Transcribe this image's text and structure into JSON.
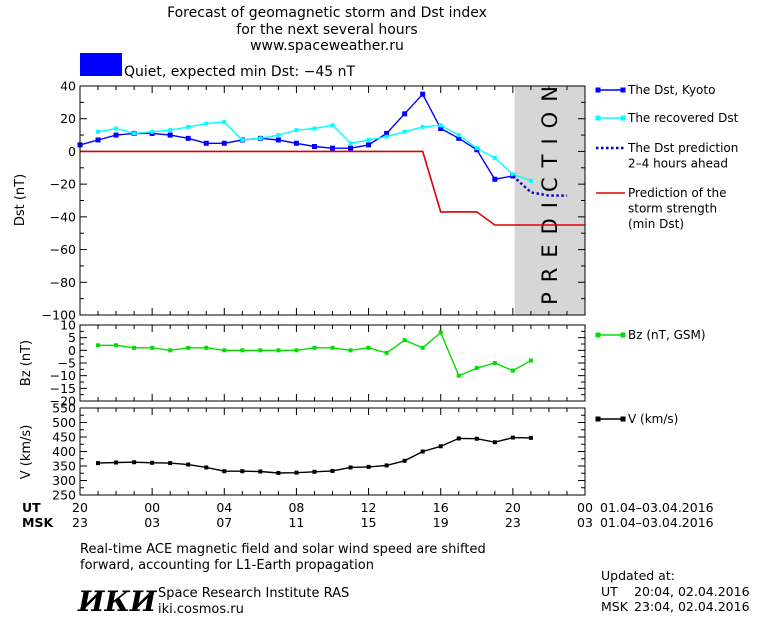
{
  "header": {
    "title_line1": "Forecast of geomagnetic storm and Dst index",
    "title_line2": "for the next several hours",
    "website": "www.spaceweather.ru",
    "status_text": "Quiet, expected min Dst: −45 nT",
    "status_color": "#0000ff"
  },
  "time_axis": {
    "ut_label": "UT",
    "msk_label": "MSK",
    "ut_ticks": [
      "20",
      "00",
      "04",
      "08",
      "12",
      "16",
      "20",
      "00"
    ],
    "msk_ticks": [
      "23",
      "03",
      "07",
      "11",
      "15",
      "19",
      "23",
      "03"
    ],
    "tick_hours": [
      0,
      4,
      8,
      12,
      16,
      20,
      24,
      28
    ],
    "date_range_ut": "01.04–03.04.2016",
    "date_range_msk": "01.04–03.04.2016",
    "xlim": [
      0,
      28
    ]
  },
  "chart_data": [
    {
      "id": "dst",
      "type": "line",
      "ylabel": "Dst (nT)",
      "ylim": [
        -100,
        40
      ],
      "yticks": [
        "40",
        "20",
        "0",
        "−20",
        "−40",
        "−60",
        "−80",
        "−100"
      ],
      "ytick_values": [
        40,
        20,
        0,
        -20,
        -40,
        -60,
        -80,
        -100
      ],
      "prediction_region": {
        "label": "PREDICTION",
        "x_start": 24.1,
        "x_end": 28
      },
      "series": [
        {
          "name": "The Dst, Kyoto",
          "color": "#0000ff",
          "x": [
            0,
            1,
            2,
            3,
            4,
            5,
            6,
            7,
            8,
            9,
            10,
            11,
            12,
            13,
            14,
            15,
            16,
            17,
            18,
            19,
            20,
            21,
            22,
            23,
            24
          ],
          "values": [
            4,
            7,
            10,
            11,
            11,
            10,
            8,
            5,
            5,
            7,
            8,
            7,
            5,
            3,
            2,
            2,
            4,
            11,
            23,
            35,
            14,
            8,
            1,
            -17,
            -15
          ]
        },
        {
          "name": "The recovered Dst",
          "color": "#00ffff",
          "x": [
            1,
            2,
            3,
            4,
            5,
            6,
            7,
            8,
            9,
            10,
            11,
            12,
            13,
            14,
            15,
            16,
            17,
            18,
            19,
            20,
            21,
            22,
            23,
            24,
            25
          ],
          "values": [
            12,
            14,
            11,
            12,
            13,
            15,
            17,
            18,
            7,
            8,
            10,
            13,
            14,
            16,
            5,
            7,
            9,
            12,
            15,
            16,
            10,
            2,
            -4,
            -14,
            -18
          ]
        },
        {
          "name": "The Dst prediction 2–4 hours ahead",
          "legend_lines": [
            "The Dst prediction",
            "2–4 hours ahead"
          ],
          "color": "#0000cc",
          "x": [
            24,
            25,
            26,
            27
          ],
          "values": [
            -15,
            -25,
            -27,
            -27
          ]
        },
        {
          "name": "Prediction of the storm strength (min Dst)",
          "legend_lines": [
            "Prediction of the",
            "storm strength",
            "(min Dst)"
          ],
          "color": "#dd0000",
          "x": [
            0,
            19,
            20,
            22,
            23,
            28
          ],
          "values": [
            0,
            0,
            -37,
            -37,
            -45,
            -45
          ]
        }
      ]
    },
    {
      "id": "bz",
      "type": "line",
      "ylabel": "Bz (nT)",
      "ylim": [
        -20,
        10
      ],
      "yticks": [
        "10",
        "5",
        "0",
        "−5",
        "−10",
        "−15",
        "−20"
      ],
      "ytick_values": [
        10,
        5,
        0,
        -5,
        -10,
        -15,
        -20
      ],
      "series": [
        {
          "name": "Bz (nT, GSM)",
          "color": "#00dd00",
          "x": [
            1,
            2,
            3,
            4,
            5,
            6,
            7,
            8,
            9,
            10,
            11,
            12,
            13,
            14,
            15,
            16,
            17,
            18,
            19,
            20,
            21,
            22,
            23,
            24,
            25
          ],
          "values": [
            2,
            2,
            1,
            1,
            0,
            1,
            1,
            0,
            0,
            0,
            0,
            0,
            1,
            1,
            0,
            1,
            -1,
            4,
            1,
            7,
            -10,
            -7,
            -5,
            -8,
            -4
          ]
        }
      ]
    },
    {
      "id": "v",
      "type": "line",
      "ylabel": "V (km/s)",
      "ylim": [
        250,
        550
      ],
      "yticks": [
        "550",
        "500",
        "450",
        "400",
        "350",
        "300",
        "250"
      ],
      "ytick_values": [
        550,
        500,
        450,
        400,
        350,
        300,
        250
      ],
      "series": [
        {
          "name": "V (km/s)",
          "color": "#000000",
          "x": [
            1,
            2,
            3,
            4,
            5,
            6,
            7,
            8,
            9,
            10,
            11,
            12,
            13,
            14,
            15,
            16,
            17,
            18,
            19,
            20,
            21,
            22,
            23,
            24,
            25
          ],
          "values": [
            360,
            362,
            363,
            361,
            360,
            355,
            345,
            332,
            332,
            331,
            326,
            327,
            330,
            333,
            345,
            347,
            352,
            368,
            400,
            418,
            445,
            444,
            432,
            448,
            447
          ]
        }
      ]
    }
  ],
  "footer": {
    "note_line1": "Real-time ACE magnetic field and solar wind speed are shifted",
    "note_line2": "forward, accounting for L1-Earth propagation",
    "logo_text": "ИКИ",
    "institute": "Space Research Institute RAS",
    "institute_url": "iki.cosmos.ru",
    "updated_label": "Updated at:",
    "updated_ut_label": "UT",
    "updated_ut": "20:04, 02.04.2016",
    "updated_msk_label": "MSK",
    "updated_msk": "23:04, 02.04.2016"
  }
}
